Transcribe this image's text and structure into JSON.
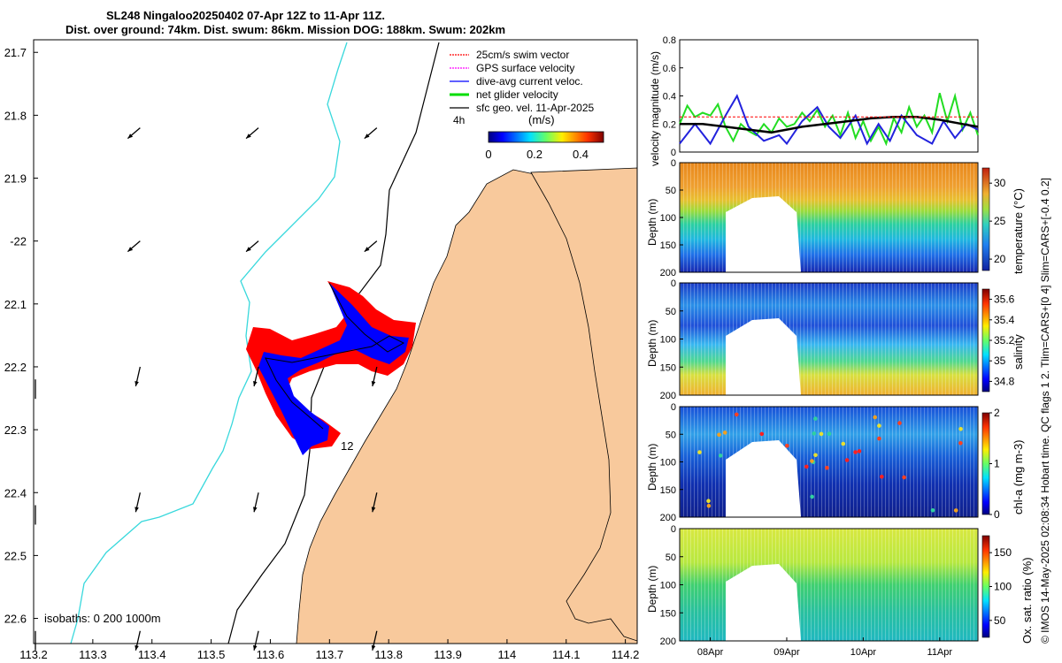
{
  "header": {
    "line1": "SL248 Ningaloo20250402 07-Apr 12Z to 11-Apr 11Z.",
    "line2": "Dist. over ground: 74km. Dist. swum: 86km. Mission DOG: 188km. Swum: 202km"
  },
  "side_caption": "© IMOS 14-May-2025 02:08:34 Hobart time. QC flags 1  2. Tlim=CARS+[0 4] Slim=CARS+[-0.4 0.2]",
  "colors": {
    "land": "#f8c99c",
    "isobath_shallow": "#38d8dc",
    "isobath_deep": "#000000",
    "swim": "#ff0000",
    "gps": "#ff00ff",
    "dive": "#0000ff",
    "net": "#00dd00",
    "sfc": "#000000"
  },
  "chart_data": [
    {
      "type": "map",
      "name": "track-map",
      "lat_ticks": [
        "21.7",
        "21.8",
        "21.9",
        "-22",
        "22.1",
        "22.2",
        "22.3",
        "22.4",
        "22.5",
        "22.6"
      ],
      "lat_values": [
        -21.7,
        -21.8,
        -21.9,
        -22.0,
        -22.1,
        -22.2,
        -22.3,
        -22.4,
        -22.5,
        -22.6
      ],
      "lon_ticks": [
        "113.2",
        "113.3",
        "113.4",
        "113.5",
        "113.6",
        "113.7",
        "113.8",
        "113.9",
        "114",
        "114.1",
        "114.2"
      ],
      "lon_values": [
        113.2,
        113.3,
        113.4,
        113.5,
        113.6,
        113.7,
        113.8,
        113.9,
        114.0,
        114.1,
        114.2
      ],
      "lon_range": [
        113.2,
        114.22
      ],
      "lat_range": [
        -22.64,
        -21.68
      ],
      "legend": [
        {
          "label": "25cm/s swim vector",
          "color": "#ff0000"
        },
        {
          "label": "GPS surface velocity",
          "color": "#ff00ff"
        },
        {
          "label": "dive-avg current veloc.",
          "color": "#0000ff"
        },
        {
          "label": "net glider velocity",
          "color": "#00dd00"
        },
        {
          "label": "sfc geo. vel. 11-Apr-2025",
          "color": "#000000"
        }
      ],
      "colorbar": {
        "title": "(m/s)",
        "ticks": [
          "0",
          "0.2",
          "0.4"
        ],
        "tick_values": [
          0,
          0.2,
          0.4
        ],
        "range": [
          0,
          0.5
        ],
        "note": "4h"
      },
      "isobaths_label": "isobaths: 0   200  1000m",
      "annotations": [
        "12"
      ]
    },
    {
      "type": "line",
      "name": "velocity-magnitude",
      "ylabel": "velocity magnitude (m/s)",
      "yticks": [
        "0",
        "0.2",
        "0.4",
        "0.6",
        "0.8"
      ],
      "ytick_values": [
        0,
        0.2,
        0.4,
        0.6,
        0.8
      ],
      "ylim": [
        0,
        0.8
      ],
      "xlim": [
        7.6,
        11.5
      ],
      "series": [
        {
          "name": "green",
          "color": "#22dd22",
          "x": [
            7.6,
            7.7,
            7.8,
            7.9,
            8.0,
            8.1,
            8.2,
            8.3,
            8.4,
            8.5,
            8.6,
            8.7,
            8.8,
            8.9,
            9.0,
            9.1,
            9.2,
            9.3,
            9.4,
            9.5,
            9.6,
            9.7,
            9.8,
            9.9,
            10.0,
            10.1,
            10.2,
            10.3,
            10.4,
            10.5,
            10.6,
            10.7,
            10.8,
            10.9,
            11.0,
            11.1,
            11.2,
            11.3,
            11.4,
            11.5
          ],
          "y": [
            0.2,
            0.33,
            0.25,
            0.28,
            0.26,
            0.34,
            0.18,
            0.08,
            0.2,
            0.15,
            0.12,
            0.2,
            0.14,
            0.24,
            0.18,
            0.2,
            0.28,
            0.22,
            0.3,
            0.18,
            0.26,
            0.12,
            0.28,
            0.1,
            0.22,
            0.08,
            0.18,
            0.06,
            0.24,
            0.14,
            0.32,
            0.18,
            0.26,
            0.14,
            0.42,
            0.22,
            0.4,
            0.16,
            0.28,
            0.12
          ]
        },
        {
          "name": "blue",
          "color": "#2222dd",
          "x": [
            7.6,
            7.8,
            8.0,
            8.2,
            8.35,
            8.5,
            8.7,
            8.9,
            9.0,
            9.2,
            9.4,
            9.55,
            9.7,
            9.9,
            10.05,
            10.2,
            10.35,
            10.5,
            10.7,
            10.9,
            11.05,
            11.2,
            11.35,
            11.5
          ],
          "y": [
            0.06,
            0.2,
            0.06,
            0.26,
            0.4,
            0.18,
            0.08,
            0.12,
            0.06,
            0.22,
            0.32,
            0.18,
            0.1,
            0.26,
            0.06,
            0.2,
            0.08,
            0.26,
            0.12,
            0.06,
            0.22,
            0.1,
            0.2,
            0.16
          ]
        },
        {
          "name": "black",
          "color": "#000000",
          "x": [
            7.6,
            7.9,
            8.2,
            8.5,
            8.8,
            9.0,
            9.2,
            9.5,
            9.8,
            10.1,
            10.4,
            10.7,
            11.0,
            11.3,
            11.5
          ],
          "y": [
            0.2,
            0.2,
            0.18,
            0.16,
            0.14,
            0.16,
            0.18,
            0.2,
            0.22,
            0.24,
            0.25,
            0.25,
            0.23,
            0.2,
            0.18
          ]
        },
        {
          "name": "red-dashed",
          "color": "#ff0000",
          "x": [
            7.6,
            11.5
          ],
          "y": [
            0.25,
            0.25
          ]
        }
      ]
    },
    {
      "type": "heatmap",
      "name": "temperature-section",
      "ylabel": "Depth (m)",
      "clabel": "temperature (°C)",
      "cticks": [
        "20",
        "25",
        "30"
      ],
      "ctick_values": [
        20,
        25,
        30
      ],
      "crange": [
        18.5,
        32
      ],
      "yticks": [
        "0",
        "50",
        "100",
        "150",
        "200"
      ],
      "ytick_values": [
        0,
        50,
        100,
        150,
        200
      ]
    },
    {
      "type": "heatmap",
      "name": "salinity-section",
      "ylabel": "Depth (m)",
      "clabel": "salinity",
      "cticks": [
        "34.8",
        "35",
        "35.2",
        "35.4",
        "35.6"
      ],
      "ctick_values": [
        34.8,
        35.0,
        35.2,
        35.4,
        35.6
      ],
      "crange": [
        34.7,
        35.7
      ],
      "yticks": [
        "0",
        "50",
        "100",
        "150",
        "200"
      ],
      "ytick_values": [
        0,
        50,
        100,
        150,
        200
      ]
    },
    {
      "type": "heatmap",
      "name": "chla-section",
      "ylabel": "Depth (m)",
      "clabel": "chl-a (mg m-3)",
      "cticks": [
        "0",
        "1",
        "2"
      ],
      "ctick_values": [
        0,
        1,
        2
      ],
      "crange": [
        0,
        2
      ],
      "yticks": [
        "0",
        "50",
        "100",
        "150",
        "200"
      ],
      "ytick_values": [
        0,
        50,
        100,
        150,
        200
      ]
    },
    {
      "type": "heatmap",
      "name": "oxygen-section",
      "ylabel": "Depth (m)",
      "clabel": "Ox. sat. ratio (%)",
      "cticks": [
        "50",
        "100",
        "150"
      ],
      "ctick_values": [
        50,
        100,
        150
      ],
      "crange": [
        25,
        175
      ],
      "yticks": [
        "0",
        "50",
        "100",
        "150",
        "200"
      ],
      "ytick_values": [
        0,
        50,
        100,
        150,
        200
      ],
      "xticks": [
        "08Apr",
        "09Apr",
        "10Apr",
        "11Apr"
      ],
      "xtick_values": [
        8,
        9,
        10,
        11
      ]
    }
  ]
}
